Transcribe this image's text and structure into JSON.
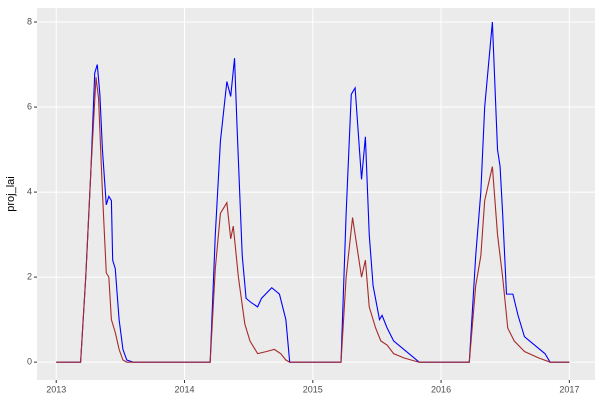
{
  "chart_data": {
    "type": "line",
    "y_label": "proj_lai",
    "xlim": [
      2012.85,
      2017.2
    ],
    "xticks": [
      2013,
      2014,
      2015,
      2016,
      2017
    ],
    "ylim": [
      -0.42,
      8.33
    ],
    "yticks": [
      0,
      2,
      4,
      6,
      8
    ],
    "grid": true,
    "series": [
      {
        "color": "#0000ff",
        "x": [
          2013.0,
          2013.19,
          2013.23,
          2013.27,
          2013.3,
          2013.32,
          2013.34,
          2013.36,
          2013.39,
          2013.41,
          2013.43,
          2013.44,
          2013.46,
          2013.49,
          2013.52,
          2013.55,
          2013.6,
          2014.2,
          2014.24,
          2014.28,
          2014.33,
          2014.36,
          2014.39,
          2014.41,
          2014.45,
          2014.48,
          2014.52,
          2014.57,
          2014.6,
          2014.68,
          2014.74,
          2014.79,
          2014.82,
          2015.22,
          2015.26,
          2015.3,
          2015.33,
          2015.38,
          2015.41,
          2015.44,
          2015.47,
          2015.52,
          2015.54,
          2015.58,
          2015.63,
          2015.71,
          2015.79,
          2015.83,
          2016.22,
          2016.27,
          2016.31,
          2016.34,
          2016.4,
          2016.44,
          2016.46,
          2016.48,
          2016.51,
          2016.56,
          2016.6,
          2016.65,
          2016.73,
          2016.81,
          2016.85,
          2017.0
        ],
        "values": [
          0,
          0,
          2,
          4.5,
          6.8,
          7,
          6.3,
          5,
          3.7,
          3.9,
          3.8,
          2.4,
          2.2,
          1,
          0.3,
          0.05,
          0,
          0,
          3,
          5.2,
          6.6,
          6.25,
          7.15,
          5.5,
          2.5,
          1.5,
          1.4,
          1.3,
          1.5,
          1.75,
          1.6,
          1.0,
          0,
          0,
          3.5,
          6.3,
          6.45,
          4.3,
          5.3,
          3,
          1.8,
          1.0,
          1.1,
          0.8,
          0.5,
          0.3,
          0.1,
          0,
          0,
          2.5,
          4,
          6,
          8,
          5,
          4.6,
          3.5,
          1.6,
          1.6,
          1.1,
          0.6,
          0.4,
          0.2,
          0,
          0
        ]
      },
      {
        "color": "#a52a2a",
        "x": [
          2013.0,
          2013.19,
          2013.23,
          2013.27,
          2013.31,
          2013.33,
          2013.36,
          2013.39,
          2013.41,
          2013.43,
          2013.46,
          2013.49,
          2013.52,
          2013.55,
          2014.2,
          2014.24,
          2014.28,
          2014.33,
          2014.36,
          2014.38,
          2014.42,
          2014.47,
          2014.51,
          2014.57,
          2014.64,
          2014.7,
          2014.75,
          2014.79,
          2014.82,
          2015.22,
          2015.26,
          2015.31,
          2015.38,
          2015.41,
          2015.44,
          2015.49,
          2015.53,
          2015.58,
          2015.63,
          2015.71,
          2015.79,
          2015.83,
          2016.22,
          2016.27,
          2016.31,
          2016.34,
          2016.4,
          2016.44,
          2016.48,
          2016.52,
          2016.57,
          2016.65,
          2016.76,
          2016.85,
          2017.0
        ],
        "values": [
          0,
          0,
          2,
          4.5,
          6.7,
          6.2,
          4,
          2.1,
          2,
          1,
          0.7,
          0.3,
          0.05,
          0,
          0,
          2.2,
          3.5,
          3.75,
          2.9,
          3.2,
          2,
          0.9,
          0.5,
          0.2,
          0.25,
          0.3,
          0.2,
          0.05,
          0,
          0,
          2,
          3.4,
          2,
          2.4,
          1.3,
          0.8,
          0.5,
          0.4,
          0.2,
          0.1,
          0.03,
          0,
          0,
          1.8,
          2.5,
          3.8,
          4.6,
          3,
          2,
          0.8,
          0.5,
          0.25,
          0.1,
          0,
          0
        ]
      }
    ]
  }
}
